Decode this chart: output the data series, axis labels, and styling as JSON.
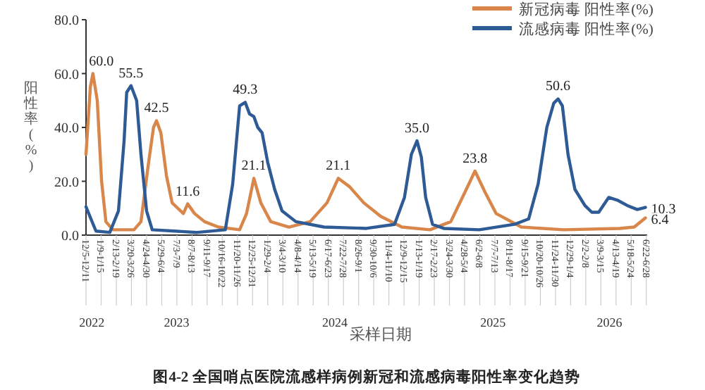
{
  "chart_data": {
    "type": "line",
    "title": "图4-2 全国哨点医院流感样病例新冠和流感病毒阳性率变化趋势",
    "xlabel": "采样日期",
    "ylabel": "阳性率(%)",
    "legend": "top right",
    "marker": "none",
    "line_style": "solid",
    "grid": false,
    "xlim": [
      "2022-12-05",
      "2026-06-24"
    ],
    "ylim": [
      0,
      80
    ],
    "yticks": [
      {
        "value": 0,
        "label": "0.0"
      },
      {
        "value": 20,
        "label": "20.0"
      },
      {
        "value": 40,
        "label": "40.0"
      },
      {
        "value": 60,
        "label": "60.0"
      },
      {
        "value": 80,
        "label": "80.0"
      }
    ],
    "xticks": [
      {
        "value": "2022-12-05",
        "label": "12/5-12/11"
      },
      {
        "value": "2023-01-09",
        "label": "1/9-1/15"
      },
      {
        "value": "2023-02-13",
        "label": "2/13-2/19"
      },
      {
        "value": "2023-03-20",
        "label": "3/20-3/26"
      },
      {
        "value": "2023-04-24",
        "label": "4/24-4/30"
      },
      {
        "value": "2023-05-29",
        "label": "5/29-6/4"
      },
      {
        "value": "2023-07-03",
        "label": "7/3-7/9"
      },
      {
        "value": "2023-08-07",
        "label": "8/7-8/13"
      },
      {
        "value": "2023-09-11",
        "label": "9/11-9/17"
      },
      {
        "value": "2023-10-16",
        "label": "10/16-10/22"
      },
      {
        "value": "2023-11-20",
        "label": "11/20-11/26"
      },
      {
        "value": "2023-12-25",
        "label": "12/25-12/31"
      },
      {
        "value": "2024-01-29",
        "label": "1/29-2/4"
      },
      {
        "value": "2024-03-04",
        "label": "3/4-3/10"
      },
      {
        "value": "2024-04-08",
        "label": "4/8-4/14"
      },
      {
        "value": "2024-05-13",
        "label": "5/13-5/19"
      },
      {
        "value": "2024-06-17",
        "label": "6/17-6/23"
      },
      {
        "value": "2024-07-22",
        "label": "7/22-7/28"
      },
      {
        "value": "2024-08-26",
        "label": "8/26-9/1"
      },
      {
        "value": "2024-09-30",
        "label": "9/30-10/6"
      },
      {
        "value": "2024-11-04",
        "label": "11/4-11/10"
      },
      {
        "value": "2024-12-09",
        "label": "12/9-12/15"
      },
      {
        "value": "2025-01-13",
        "label": "1/13-1/19"
      },
      {
        "value": "2025-02-17",
        "label": "2/17-2/23"
      },
      {
        "value": "2025-03-24",
        "label": "3/24-3/30"
      },
      {
        "value": "2025-04-28",
        "label": "4/28-5/4"
      },
      {
        "value": "2025-06-02",
        "label": "6/2-6/8"
      },
      {
        "value": "2025-07-07",
        "label": "7/7-7/13"
      },
      {
        "value": "2025-08-11",
        "label": "8/11-8/17"
      },
      {
        "value": "2025-09-15",
        "label": "9/15-9/21"
      },
      {
        "value": "2025-10-20",
        "label": "10/20-10/26"
      },
      {
        "value": "2025-11-24",
        "label": "11/24-11/30"
      },
      {
        "value": "2025-12-29",
        "label": "12/29-1/4"
      },
      {
        "value": "2026-02-02",
        "label": "2/2-2/8"
      },
      {
        "value": "2026-03-09",
        "label": "3/9-3/15"
      },
      {
        "value": "2026-04-13",
        "label": "4/13-4/19"
      },
      {
        "value": "2026-05-18",
        "label": "5/18-5/24"
      },
      {
        "value": "2026-06-22",
        "label": "6/22-6/28"
      }
    ],
    "series": [
      {
        "name": "新冠病毒 阳性率(%)",
        "color": "#d8864a",
        "x": [
          "2022-12-05",
          "2022-12-15",
          "2022-12-21",
          "2022-12-31",
          "2023-01-10",
          "2023-01-20",
          "2023-02-05",
          "2023-03-26",
          "2023-04-11",
          "2023-04-27",
          "2023-05-10",
          "2023-05-17",
          "2023-05-27",
          "2023-06-09",
          "2023-06-22",
          "2023-07-05",
          "2023-07-18",
          "2023-07-28",
          "2023-08-13",
          "2023-09-05",
          "2023-10-07",
          "2023-11-25",
          "2023-12-11",
          "2023-12-28",
          "2024-01-13",
          "2024-02-05",
          "2024-03-18",
          "2024-05-06",
          "2024-06-14",
          "2024-07-10",
          "2024-08-05",
          "2024-09-07",
          "2024-10-16",
          "2024-12-04",
          "2025-02-07",
          "2025-03-27",
          "2025-04-29",
          "2025-05-22",
          "2025-06-14",
          "2025-07-10",
          "2025-09-06",
          "2025-12-13",
          "2026-04-22",
          "2026-05-25",
          "2026-06-20"
        ],
        "values": [
          30,
          55,
          60.0,
          50,
          20,
          5,
          2,
          2,
          5,
          25,
          40,
          42.5,
          38,
          22,
          12,
          10,
          8,
          11.6,
          8,
          5,
          3,
          2,
          8,
          21.1,
          12,
          5,
          3,
          5,
          12,
          21.1,
          18,
          12,
          7,
          3,
          2,
          5,
          16,
          23.8,
          16,
          8,
          3,
          2,
          2.5,
          3,
          6.4
        ]
      },
      {
        "name": "流感病毒 阳性率(%)",
        "color": "#2e5b96",
        "x": [
          "2022-12-05",
          "2022-12-28",
          "2023-01-29",
          "2023-02-18",
          "2023-03-03",
          "2023-03-09",
          "2023-03-19",
          "2023-04-01",
          "2023-04-11",
          "2023-04-24",
          "2023-05-07",
          "2023-08-19",
          "2023-10-23",
          "2023-11-09",
          "2023-11-25",
          "2023-12-08",
          "2023-12-18",
          "2023-12-28",
          "2024-01-06",
          "2024-01-16",
          "2024-01-29",
          "2024-02-14",
          "2024-03-02",
          "2024-04-03",
          "2024-06-07",
          "2024-09-13",
          "2024-11-17",
          "2024-12-10",
          "2024-12-26",
          "2025-01-08",
          "2025-01-18",
          "2025-01-28",
          "2025-02-13",
          "2025-03-11",
          "2025-06-01",
          "2025-08-21",
          "2025-09-23",
          "2025-10-15",
          "2025-11-04",
          "2025-11-20",
          "2025-11-30",
          "2025-12-10",
          "2025-12-23",
          "2026-01-08",
          "2026-01-31",
          "2026-02-16",
          "2026-03-04",
          "2026-03-27",
          "2026-04-16",
          "2026-05-09",
          "2026-06-01",
          "2026-06-20"
        ],
        "values": [
          10.5,
          1.5,
          1,
          9,
          35,
          53,
          55.5,
          50,
          30,
          9,
          2,
          1,
          2,
          19,
          48,
          49.3,
          45,
          44,
          40,
          38,
          27,
          17,
          9,
          5,
          3,
          2.5,
          4,
          14,
          30,
          35.0,
          29,
          14,
          4,
          2.5,
          2,
          4,
          6,
          19,
          40,
          49,
          50.6,
          48,
          30,
          17,
          11,
          8.5,
          8.5,
          14,
          13,
          11,
          9.5,
          10.3
        ]
      }
    ],
    "annotations": [
      {
        "text": "60.0",
        "x": "2022-12-21",
        "y": 60.0
      },
      {
        "text": "55.5",
        "x": "2023-03-19",
        "y": 55.5
      },
      {
        "text": "42.5",
        "x": "2023-05-17",
        "y": 42.5
      },
      {
        "text": "11.6",
        "x": "2023-07-28",
        "y": 11.6
      },
      {
        "text": "49.3",
        "x": "2023-12-08",
        "y": 49.3
      },
      {
        "text": "21.1",
        "x": "2023-12-28",
        "y": 21.1
      },
      {
        "text": "21.1",
        "x": "2024-07-10",
        "y": 21.1
      },
      {
        "text": "35.0",
        "x": "2025-01-08",
        "y": 35.0
      },
      {
        "text": "23.8",
        "x": "2025-05-22",
        "y": 23.8
      },
      {
        "text": "50.6",
        "x": "2025-11-30",
        "y": 50.6
      },
      {
        "text": "10.3",
        "x": "2026-06-20",
        "y": 10.3
      },
      {
        "text": "6.4",
        "x": "2026-06-20",
        "y": 6.4
      },
      "2022",
      "2023",
      "2024",
      "2025",
      "2026"
    ]
  }
}
